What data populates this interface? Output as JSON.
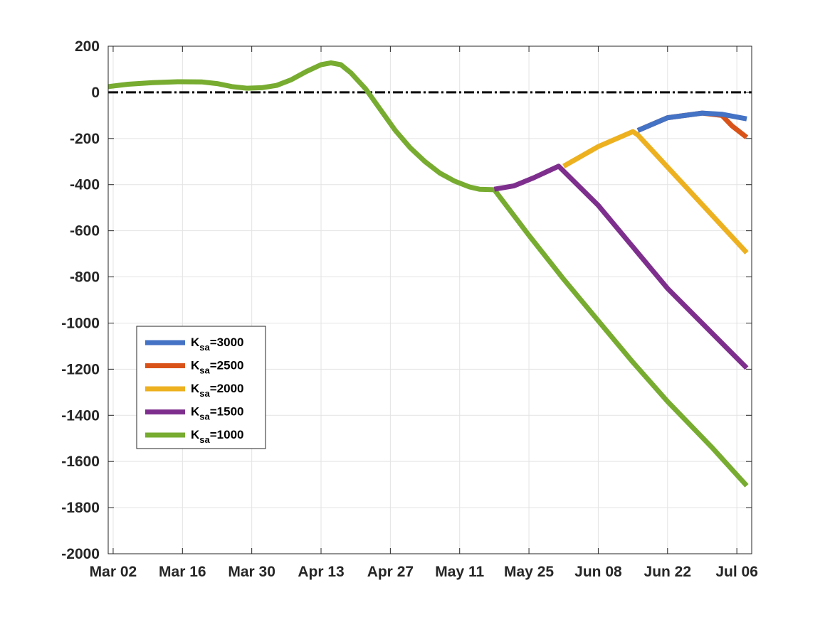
{
  "chart_data": {
    "type": "line",
    "title": "",
    "xlabel": "",
    "ylabel": "",
    "xlim": [
      "2020-03-01",
      "2020-07-09"
    ],
    "ylim": [
      -2000,
      200
    ],
    "grid": true,
    "legend_location": "left, lower-middle",
    "x_ticks": [
      "Mar 02",
      "Mar 16",
      "Mar 30",
      "Apr 13",
      "Apr 27",
      "May 11",
      "May 25",
      "Jun 08",
      "Jun 22",
      "Jul 06"
    ],
    "x_tick_dates": [
      "2020-03-02",
      "2020-03-16",
      "2020-03-30",
      "2020-04-13",
      "2020-04-27",
      "2020-05-11",
      "2020-05-25",
      "2020-06-08",
      "2020-06-22",
      "2020-07-06"
    ],
    "y_ticks": [
      200,
      0,
      -200,
      -400,
      -600,
      -800,
      -1000,
      -1200,
      -1400,
      -1600,
      -1800,
      -2000
    ],
    "reference_line": {
      "y": 0,
      "color": "#000000",
      "style": "dash-dot"
    },
    "series": [
      {
        "name": "K_sa=3000",
        "label_main": "K",
        "label_sub": "sa",
        "label_value": "=3000",
        "color": "#4472C4",
        "points": [
          [
            "2020-06-16",
            -165
          ],
          [
            "2020-06-22",
            -110
          ],
          [
            "2020-06-29",
            -90
          ],
          [
            "2020-07-03",
            -95
          ],
          [
            "2020-07-08",
            -115
          ]
        ]
      },
      {
        "name": "K_sa=2500",
        "label_main": "K",
        "label_sub": "sa",
        "label_value": "=2500",
        "color": "#D95319",
        "points": [
          [
            "2020-06-16",
            -165
          ],
          [
            "2020-06-22",
            -110
          ],
          [
            "2020-06-29",
            -90
          ],
          [
            "2020-07-03",
            -100
          ],
          [
            "2020-07-05",
            -145
          ],
          [
            "2020-07-08",
            -195
          ]
        ]
      },
      {
        "name": "K_sa=2000",
        "label_main": "K",
        "label_sub": "sa",
        "label_value": "=2000",
        "color": "#EDB120",
        "points": [
          [
            "2020-06-01",
            -320
          ],
          [
            "2020-06-08",
            -235
          ],
          [
            "2020-06-15",
            -170
          ],
          [
            "2020-06-16",
            -185
          ],
          [
            "2020-07-08",
            -695
          ]
        ]
      },
      {
        "name": "K_sa=1500",
        "label_main": "K",
        "label_sub": "sa",
        "label_value": "=1500",
        "color": "#7E2F8E",
        "points": [
          [
            "2020-05-18",
            -420
          ],
          [
            "2020-05-22",
            -405
          ],
          [
            "2020-05-26",
            -370
          ],
          [
            "2020-05-31",
            -320
          ],
          [
            "2020-06-08",
            -490
          ],
          [
            "2020-06-22",
            -850
          ],
          [
            "2020-07-08",
            -1195
          ]
        ]
      },
      {
        "name": "K_sa=1000",
        "label_main": "K",
        "label_sub": "sa",
        "label_value": "=1000",
        "color": "#77AC30",
        "points": [
          [
            "2020-03-01",
            25
          ],
          [
            "2020-03-05",
            35
          ],
          [
            "2020-03-10",
            42
          ],
          [
            "2020-03-15",
            46
          ],
          [
            "2020-03-20",
            45
          ],
          [
            "2020-03-23",
            38
          ],
          [
            "2020-03-26",
            25
          ],
          [
            "2020-03-29",
            18
          ],
          [
            "2020-04-01",
            20
          ],
          [
            "2020-04-04",
            30
          ],
          [
            "2020-04-07",
            55
          ],
          [
            "2020-04-10",
            90
          ],
          [
            "2020-04-13",
            120
          ],
          [
            "2020-04-15",
            128
          ],
          [
            "2020-04-17",
            120
          ],
          [
            "2020-04-19",
            85
          ],
          [
            "2020-04-22",
            15
          ],
          [
            "2020-04-25",
            -75
          ],
          [
            "2020-04-28",
            -165
          ],
          [
            "2020-05-01",
            -240
          ],
          [
            "2020-05-04",
            -300
          ],
          [
            "2020-05-07",
            -350
          ],
          [
            "2020-05-10",
            -385
          ],
          [
            "2020-05-13",
            -410
          ],
          [
            "2020-05-15",
            -420
          ],
          [
            "2020-05-18",
            -422
          ],
          [
            "2020-05-25",
            -620
          ],
          [
            "2020-06-01",
            -810
          ],
          [
            "2020-06-08",
            -990
          ],
          [
            "2020-06-15",
            -1170
          ],
          [
            "2020-06-22",
            -1340
          ],
          [
            "2020-07-01",
            -1540
          ],
          [
            "2020-07-08",
            -1705
          ]
        ]
      }
    ]
  }
}
